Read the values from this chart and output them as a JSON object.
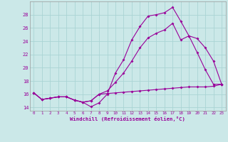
{
  "xlabel": "Windchill (Refroidissement éolien,°C)",
  "bg_color": "#cbe8e8",
  "grid_color": "#aad4d4",
  "line_color": "#990099",
  "xlim": [
    -0.5,
    23.5
  ],
  "ylim": [
    13.5,
    30.0
  ],
  "xticks": [
    0,
    1,
    2,
    3,
    4,
    5,
    6,
    7,
    8,
    9,
    10,
    11,
    12,
    13,
    14,
    15,
    16,
    17,
    18,
    19,
    20,
    21,
    22,
    23
  ],
  "yticks": [
    14,
    16,
    18,
    20,
    22,
    24,
    26,
    28
  ],
  "line1_x": [
    0,
    1,
    2,
    3,
    4,
    5,
    6,
    7,
    8,
    9,
    10,
    11,
    12,
    13,
    14,
    15,
    16,
    17,
    18,
    19,
    20,
    21,
    22,
    23
  ],
  "line1_y": [
    16.2,
    15.2,
    15.4,
    15.6,
    15.6,
    15.1,
    14.8,
    14.1,
    14.7,
    16.0,
    19.2,
    21.2,
    24.2,
    26.2,
    27.8,
    28.0,
    28.3,
    29.1,
    27.0,
    24.8,
    22.3,
    19.7,
    17.5,
    17.5
  ],
  "line2_x": [
    0,
    1,
    2,
    3,
    4,
    5,
    6,
    7,
    8,
    9,
    10,
    11,
    12,
    13,
    14,
    15,
    16,
    17,
    18,
    19,
    20,
    21,
    22,
    23
  ],
  "line2_y": [
    16.2,
    15.2,
    15.4,
    15.6,
    15.6,
    15.1,
    14.8,
    15.0,
    16.0,
    16.5,
    17.8,
    19.2,
    21.0,
    23.0,
    24.5,
    25.2,
    25.7,
    26.7,
    24.2,
    24.8,
    24.4,
    23.0,
    21.0,
    17.5
  ],
  "line3_x": [
    0,
    1,
    2,
    3,
    4,
    5,
    6,
    7,
    8,
    9,
    10,
    11,
    12,
    13,
    14,
    15,
    16,
    17,
    18,
    19,
    20,
    21,
    22,
    23
  ],
  "line3_y": [
    16.2,
    15.2,
    15.4,
    15.6,
    15.6,
    15.1,
    14.8,
    15.0,
    16.0,
    16.1,
    16.2,
    16.3,
    16.4,
    16.5,
    16.6,
    16.7,
    16.8,
    16.9,
    17.0,
    17.1,
    17.1,
    17.1,
    17.2,
    17.5
  ]
}
